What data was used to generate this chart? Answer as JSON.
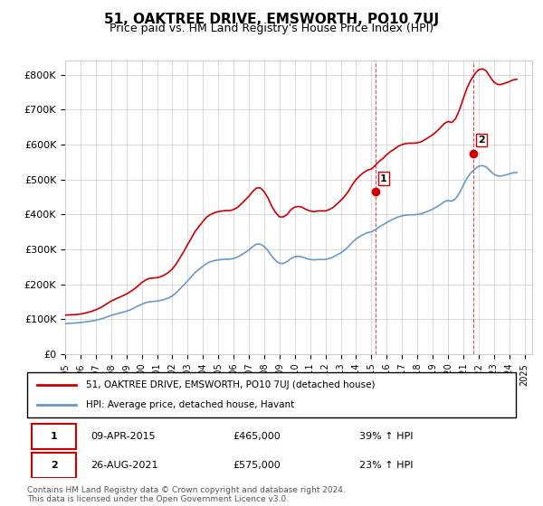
{
  "title": "51, OAKTREE DRIVE, EMSWORTH, PO10 7UJ",
  "subtitle": "Price paid vs. HM Land Registry's House Price Index (HPI)",
  "title_fontsize": 11,
  "subtitle_fontsize": 9,
  "ylabel_ticks": [
    "£0",
    "£100K",
    "£200K",
    "£300K",
    "£400K",
    "£500K",
    "£600K",
    "£700K",
    "£800K"
  ],
  "ytick_values": [
    0,
    100000,
    200000,
    300000,
    400000,
    500000,
    600000,
    700000,
    800000
  ],
  "ylim": [
    0,
    840000
  ],
  "xlim_start": 1995.0,
  "xlim_end": 2025.5,
  "bg_color": "#ffffff",
  "grid_color": "#cccccc",
  "red_line_color": "#cc0000",
  "blue_line_color": "#6699cc",
  "marker1_x": 2015.27,
  "marker1_y": 465000,
  "marker2_x": 2021.65,
  "marker2_y": 575000,
  "vline1_x": 2015.27,
  "vline2_x": 2021.65,
  "legend_label_red": "51, OAKTREE DRIVE, EMSWORTH, PO10 7UJ (detached house)",
  "legend_label_blue": "HPI: Average price, detached house, Havant",
  "annotation1_label": "1",
  "annotation2_label": "2",
  "table_row1": [
    "1",
    "09-APR-2015",
    "£465,000",
    "39% ↑ HPI"
  ],
  "table_row2": [
    "2",
    "26-AUG-2021",
    "£575,000",
    "23% ↑ HPI"
  ],
  "footer": "Contains HM Land Registry data © Crown copyright and database right 2024.\nThis data is licensed under the Open Government Licence v3.0.",
  "hpi_data_x": [
    1995,
    1995.25,
    1995.5,
    1995.75,
    1996,
    1996.25,
    1996.5,
    1996.75,
    1997,
    1997.25,
    1997.5,
    1997.75,
    1998,
    1998.25,
    1998.5,
    1998.75,
    1999,
    1999.25,
    1999.5,
    1999.75,
    2000,
    2000.25,
    2000.5,
    2000.75,
    2001,
    2001.25,
    2001.5,
    2001.75,
    2002,
    2002.25,
    2002.5,
    2002.75,
    2003,
    2003.25,
    2003.5,
    2003.75,
    2004,
    2004.25,
    2004.5,
    2004.75,
    2005,
    2005.25,
    2005.5,
    2005.75,
    2006,
    2006.25,
    2006.5,
    2006.75,
    2007,
    2007.25,
    2007.5,
    2007.75,
    2008,
    2008.25,
    2008.5,
    2008.75,
    2009,
    2009.25,
    2009.5,
    2009.75,
    2010,
    2010.25,
    2010.5,
    2010.75,
    2011,
    2011.25,
    2011.5,
    2011.75,
    2012,
    2012.25,
    2012.5,
    2012.75,
    2013,
    2013.25,
    2013.5,
    2013.75,
    2014,
    2014.25,
    2014.5,
    2014.75,
    2015,
    2015.25,
    2015.5,
    2015.75,
    2016,
    2016.25,
    2016.5,
    2016.75,
    2017,
    2017.25,
    2017.5,
    2017.75,
    2018,
    2018.25,
    2018.5,
    2018.75,
    2019,
    2019.25,
    2019.5,
    2019.75,
    2020,
    2020.25,
    2020.5,
    2020.75,
    2021,
    2021.25,
    2021.5,
    2021.75,
    2022,
    2022.25,
    2022.5,
    2022.75,
    2023,
    2023.25,
    2023.5,
    2023.75,
    2024,
    2024.25,
    2024.5
  ],
  "hpi_data_y": [
    88000,
    88500,
    89000,
    89500,
    91000,
    92000,
    93500,
    95000,
    97000,
    100000,
    103000,
    107000,
    111000,
    114000,
    117000,
    120000,
    123000,
    127000,
    132000,
    138000,
    143000,
    147000,
    150000,
    151000,
    152000,
    154000,
    157000,
    161000,
    167000,
    176000,
    187000,
    198000,
    210000,
    222000,
    234000,
    243000,
    252000,
    260000,
    265000,
    268000,
    270000,
    271000,
    272000,
    272000,
    274000,
    278000,
    284000,
    291000,
    298000,
    308000,
    315000,
    315000,
    308000,
    296000,
    280000,
    268000,
    260000,
    260000,
    265000,
    274000,
    279000,
    280000,
    278000,
    274000,
    271000,
    270000,
    271000,
    271000,
    271000,
    274000,
    278000,
    284000,
    290000,
    298000,
    308000,
    320000,
    330000,
    337000,
    343000,
    348000,
    350000,
    356000,
    364000,
    370000,
    377000,
    383000,
    388000,
    393000,
    396000,
    398000,
    399000,
    399000,
    400000,
    402000,
    406000,
    410000,
    415000,
    421000,
    428000,
    436000,
    440000,
    438000,
    445000,
    462000,
    483000,
    504000,
    519000,
    530000,
    538000,
    540000,
    536000,
    525000,
    515000,
    510000,
    510000,
    513000,
    516000,
    519000,
    520000
  ],
  "red_data_x": [
    1995,
    1995.25,
    1995.5,
    1995.75,
    1996,
    1996.25,
    1996.5,
    1996.75,
    1997,
    1997.25,
    1997.5,
    1997.75,
    1998,
    1998.25,
    1998.5,
    1998.75,
    1999,
    1999.25,
    1999.5,
    1999.75,
    2000,
    2000.25,
    2000.5,
    2000.75,
    2001,
    2001.25,
    2001.5,
    2001.75,
    2002,
    2002.25,
    2002.5,
    2002.75,
    2003,
    2003.25,
    2003.5,
    2003.75,
    2004,
    2004.25,
    2004.5,
    2004.75,
    2005,
    2005.25,
    2005.5,
    2005.75,
    2006,
    2006.25,
    2006.5,
    2006.75,
    2007,
    2007.25,
    2007.5,
    2007.75,
    2008,
    2008.25,
    2008.5,
    2008.75,
    2009,
    2009.25,
    2009.5,
    2009.75,
    2010,
    2010.25,
    2010.5,
    2010.75,
    2011,
    2011.25,
    2011.5,
    2011.75,
    2012,
    2012.25,
    2012.5,
    2012.75,
    2013,
    2013.25,
    2013.5,
    2013.75,
    2014,
    2014.25,
    2014.5,
    2014.75,
    2015,
    2015.25,
    2015.5,
    2015.75,
    2016,
    2016.25,
    2016.5,
    2016.75,
    2017,
    2017.25,
    2017.5,
    2017.75,
    2018,
    2018.25,
    2018.5,
    2018.75,
    2019,
    2019.25,
    2019.5,
    2019.75,
    2020,
    2020.25,
    2020.5,
    2020.75,
    2021,
    2021.25,
    2021.5,
    2021.75,
    2022,
    2022.25,
    2022.5,
    2022.75,
    2023,
    2023.25,
    2023.5,
    2023.75,
    2024,
    2024.25,
    2024.5
  ],
  "red_data_y": [
    112000,
    112500,
    113000,
    113500,
    115000,
    117000,
    120000,
    123000,
    127000,
    132000,
    138000,
    145000,
    152000,
    157000,
    162000,
    167000,
    172000,
    179000,
    186000,
    195000,
    205000,
    212000,
    217000,
    218000,
    219000,
    222000,
    227000,
    234000,
    244000,
    258000,
    276000,
    294000,
    314000,
    333000,
    352000,
    366000,
    380000,
    393000,
    400000,
    405000,
    408000,
    410000,
    411000,
    411000,
    414000,
    420000,
    430000,
    441000,
    452000,
    466000,
    476000,
    476000,
    465000,
    447000,
    423000,
    405000,
    393000,
    393000,
    400000,
    414000,
    421000,
    423000,
    420000,
    414000,
    410000,
    408000,
    410000,
    410000,
    410000,
    414000,
    420000,
    430000,
    440000,
    452000,
    466000,
    485000,
    500000,
    511000,
    520000,
    527000,
    530000,
    540000,
    552000,
    560000,
    571000,
    580000,
    587000,
    595000,
    600000,
    603000,
    604000,
    604000,
    605000,
    608000,
    614000,
    621000,
    628000,
    637000,
    648000,
    660000,
    666000,
    663000,
    674000,
    699000,
    731000,
    762000,
    785000,
    802000,
    814000,
    817000,
    811000,
    794000,
    779000,
    772000,
    772000,
    776000,
    780000,
    785000,
    787000
  ]
}
